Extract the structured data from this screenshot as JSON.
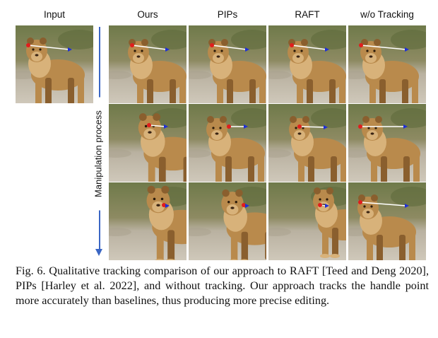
{
  "columns": [
    {
      "key": "input",
      "label": "Input"
    },
    {
      "key": "ours",
      "label": "Ours"
    },
    {
      "key": "pips",
      "label": "PIPs"
    },
    {
      "key": "raft",
      "label": "RAFT"
    },
    {
      "key": "wo",
      "label": "w/o Tracking"
    }
  ],
  "side_label": "Manipulation process",
  "caption": "Fig. 6.  Qualitative tracking comparison of our approach to RAFT [Teed and Deng 2020], PIPs [Harley et al. 2022], and without tracking. Our approach tracks the handle point more accurately than baselines, thus producing more precise editing.",
  "colors": {
    "handle": "#e11d1d",
    "target": "#1f2fd6",
    "arrow": "#3a66c4"
  }
}
